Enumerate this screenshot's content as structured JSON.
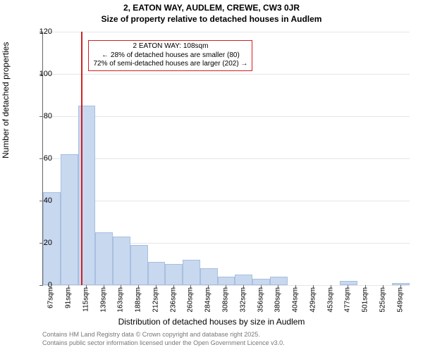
{
  "title": {
    "line1": "2, EATON WAY, AUDLEM, CREWE, CW3 0JR",
    "line2": "Size of property relative to detached houses in Audlem",
    "fontsize": 12,
    "color": "#000000"
  },
  "chart": {
    "type": "histogram",
    "background_color": "#ffffff",
    "grid_color": "#e6e6e6",
    "axis_color": "#666666",
    "bar_fill": "#c7d8ef",
    "bar_border": "#a9bfe0",
    "ylabel": "Number of detached properties",
    "xlabel": "Distribution of detached houses by size in Audlem",
    "ylim": [
      0,
      120
    ],
    "yticks": [
      0,
      20,
      40,
      60,
      80,
      100,
      120
    ],
    "x_categories": [
      "67sqm",
      "91sqm",
      "115sqm",
      "139sqm",
      "163sqm",
      "188sqm",
      "212sqm",
      "236sqm",
      "260sqm",
      "284sqm",
      "308sqm",
      "332sqm",
      "356sqm",
      "380sqm",
      "404sqm",
      "429sqm",
      "453sqm",
      "477sqm",
      "501sqm",
      "525sqm",
      "549sqm"
    ],
    "bar_values": [
      44,
      62,
      85,
      25,
      23,
      19,
      11,
      10,
      12,
      8,
      4,
      5,
      3,
      4,
      0,
      0,
      0,
      2,
      0,
      0,
      1
    ],
    "reference_line": {
      "index": 1.7,
      "color": "#d02020",
      "width": 2
    },
    "annotation": {
      "lines": [
        "2 EATON WAY: 108sqm",
        "← 28% of detached houses are smaller (80)",
        "72% of semi-detached houses are larger (202) →"
      ],
      "border_color": "#d02020",
      "text_color": "#000000",
      "fontsize": 10
    },
    "label_fontsize": 12,
    "tick_fontsize": 10
  },
  "footer": {
    "line1": "Contains HM Land Registry data © Crown copyright and database right 2025.",
    "line2": "Contains public sector information licensed under the Open Government Licence v3.0.",
    "color": "#777777",
    "fontsize": 9
  }
}
